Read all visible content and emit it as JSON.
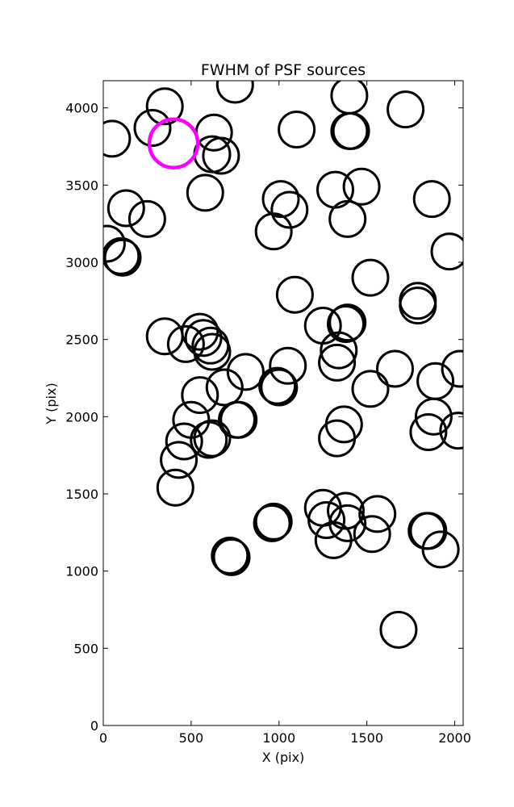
{
  "chart_data": {
    "type": "scatter",
    "title": "FWHM of PSF sources",
    "xlabel": "X (pix)",
    "ylabel": "Y (pix)",
    "xlim": [
      0,
      2048
    ],
    "ylim": [
      0,
      4176
    ],
    "xticks": [
      "0",
      "500",
      "1000",
      "1500",
      "2000"
    ],
    "yticks": [
      "0",
      "500",
      "1000",
      "1500",
      "2000",
      "2500",
      "3000",
      "3500",
      "4000"
    ],
    "grid": false,
    "marker": "open-circle",
    "series": [
      {
        "color": "#000000",
        "points": [
          [
            50,
            3800
          ],
          [
            280,
            3870
          ],
          [
            350,
            4010
          ],
          [
            750,
            4150
          ],
          [
            630,
            3840
          ],
          [
            620,
            3700
          ],
          [
            670,
            3690
          ],
          [
            1100,
            3860
          ],
          [
            1400,
            4080
          ],
          [
            1400,
            3850
          ],
          [
            1410,
            3850
          ],
          [
            1720,
            3990
          ],
          [
            580,
            3450
          ],
          [
            130,
            3350
          ],
          [
            250,
            3280
          ],
          [
            20,
            3120
          ],
          [
            100,
            3040
          ],
          [
            110,
            3030
          ],
          [
            1010,
            3410
          ],
          [
            1060,
            3340
          ],
          [
            970,
            3200
          ],
          [
            1320,
            3470
          ],
          [
            1470,
            3490
          ],
          [
            1390,
            3280
          ],
          [
            1870,
            3410
          ],
          [
            1970,
            3070
          ],
          [
            1090,
            2790
          ],
          [
            1520,
            2900
          ],
          [
            1790,
            2750
          ],
          [
            1790,
            2720
          ],
          [
            350,
            2520
          ],
          [
            470,
            2470
          ],
          [
            550,
            2550
          ],
          [
            570,
            2510
          ],
          [
            610,
            2460
          ],
          [
            620,
            2420
          ],
          [
            1250,
            2590
          ],
          [
            1380,
            2600
          ],
          [
            1390,
            2610
          ],
          [
            1340,
            2430
          ],
          [
            1330,
            2350
          ],
          [
            1050,
            2330
          ],
          [
            810,
            2290
          ],
          [
            1660,
            2310
          ],
          [
            2030,
            2310
          ],
          [
            990,
            2200
          ],
          [
            1000,
            2190
          ],
          [
            1890,
            2230
          ],
          [
            1520,
            2180
          ],
          [
            550,
            2140
          ],
          [
            690,
            2190
          ],
          [
            500,
            1980
          ],
          [
            760,
            1980
          ],
          [
            770,
            1980
          ],
          [
            1370,
            1950
          ],
          [
            1330,
            1860
          ],
          [
            1880,
            2000
          ],
          [
            1850,
            1900
          ],
          [
            2020,
            1910
          ],
          [
            460,
            1840
          ],
          [
            600,
            1850
          ],
          [
            620,
            1860
          ],
          [
            430,
            1720
          ],
          [
            410,
            1540
          ],
          [
            970,
            1320
          ],
          [
            960,
            1310
          ],
          [
            1250,
            1410
          ],
          [
            1270,
            1330
          ],
          [
            1380,
            1390
          ],
          [
            1390,
            1310
          ],
          [
            1560,
            1370
          ],
          [
            1530,
            1240
          ],
          [
            1310,
            1200
          ],
          [
            1840,
            1260
          ],
          [
            1850,
            1260
          ],
          [
            1920,
            1140
          ],
          [
            720,
            1100
          ],
          [
            730,
            1090
          ],
          [
            1680,
            620
          ]
        ]
      },
      {
        "color": "#ff00ff",
        "points": [
          [
            400,
            3770
          ]
        ]
      }
    ]
  }
}
